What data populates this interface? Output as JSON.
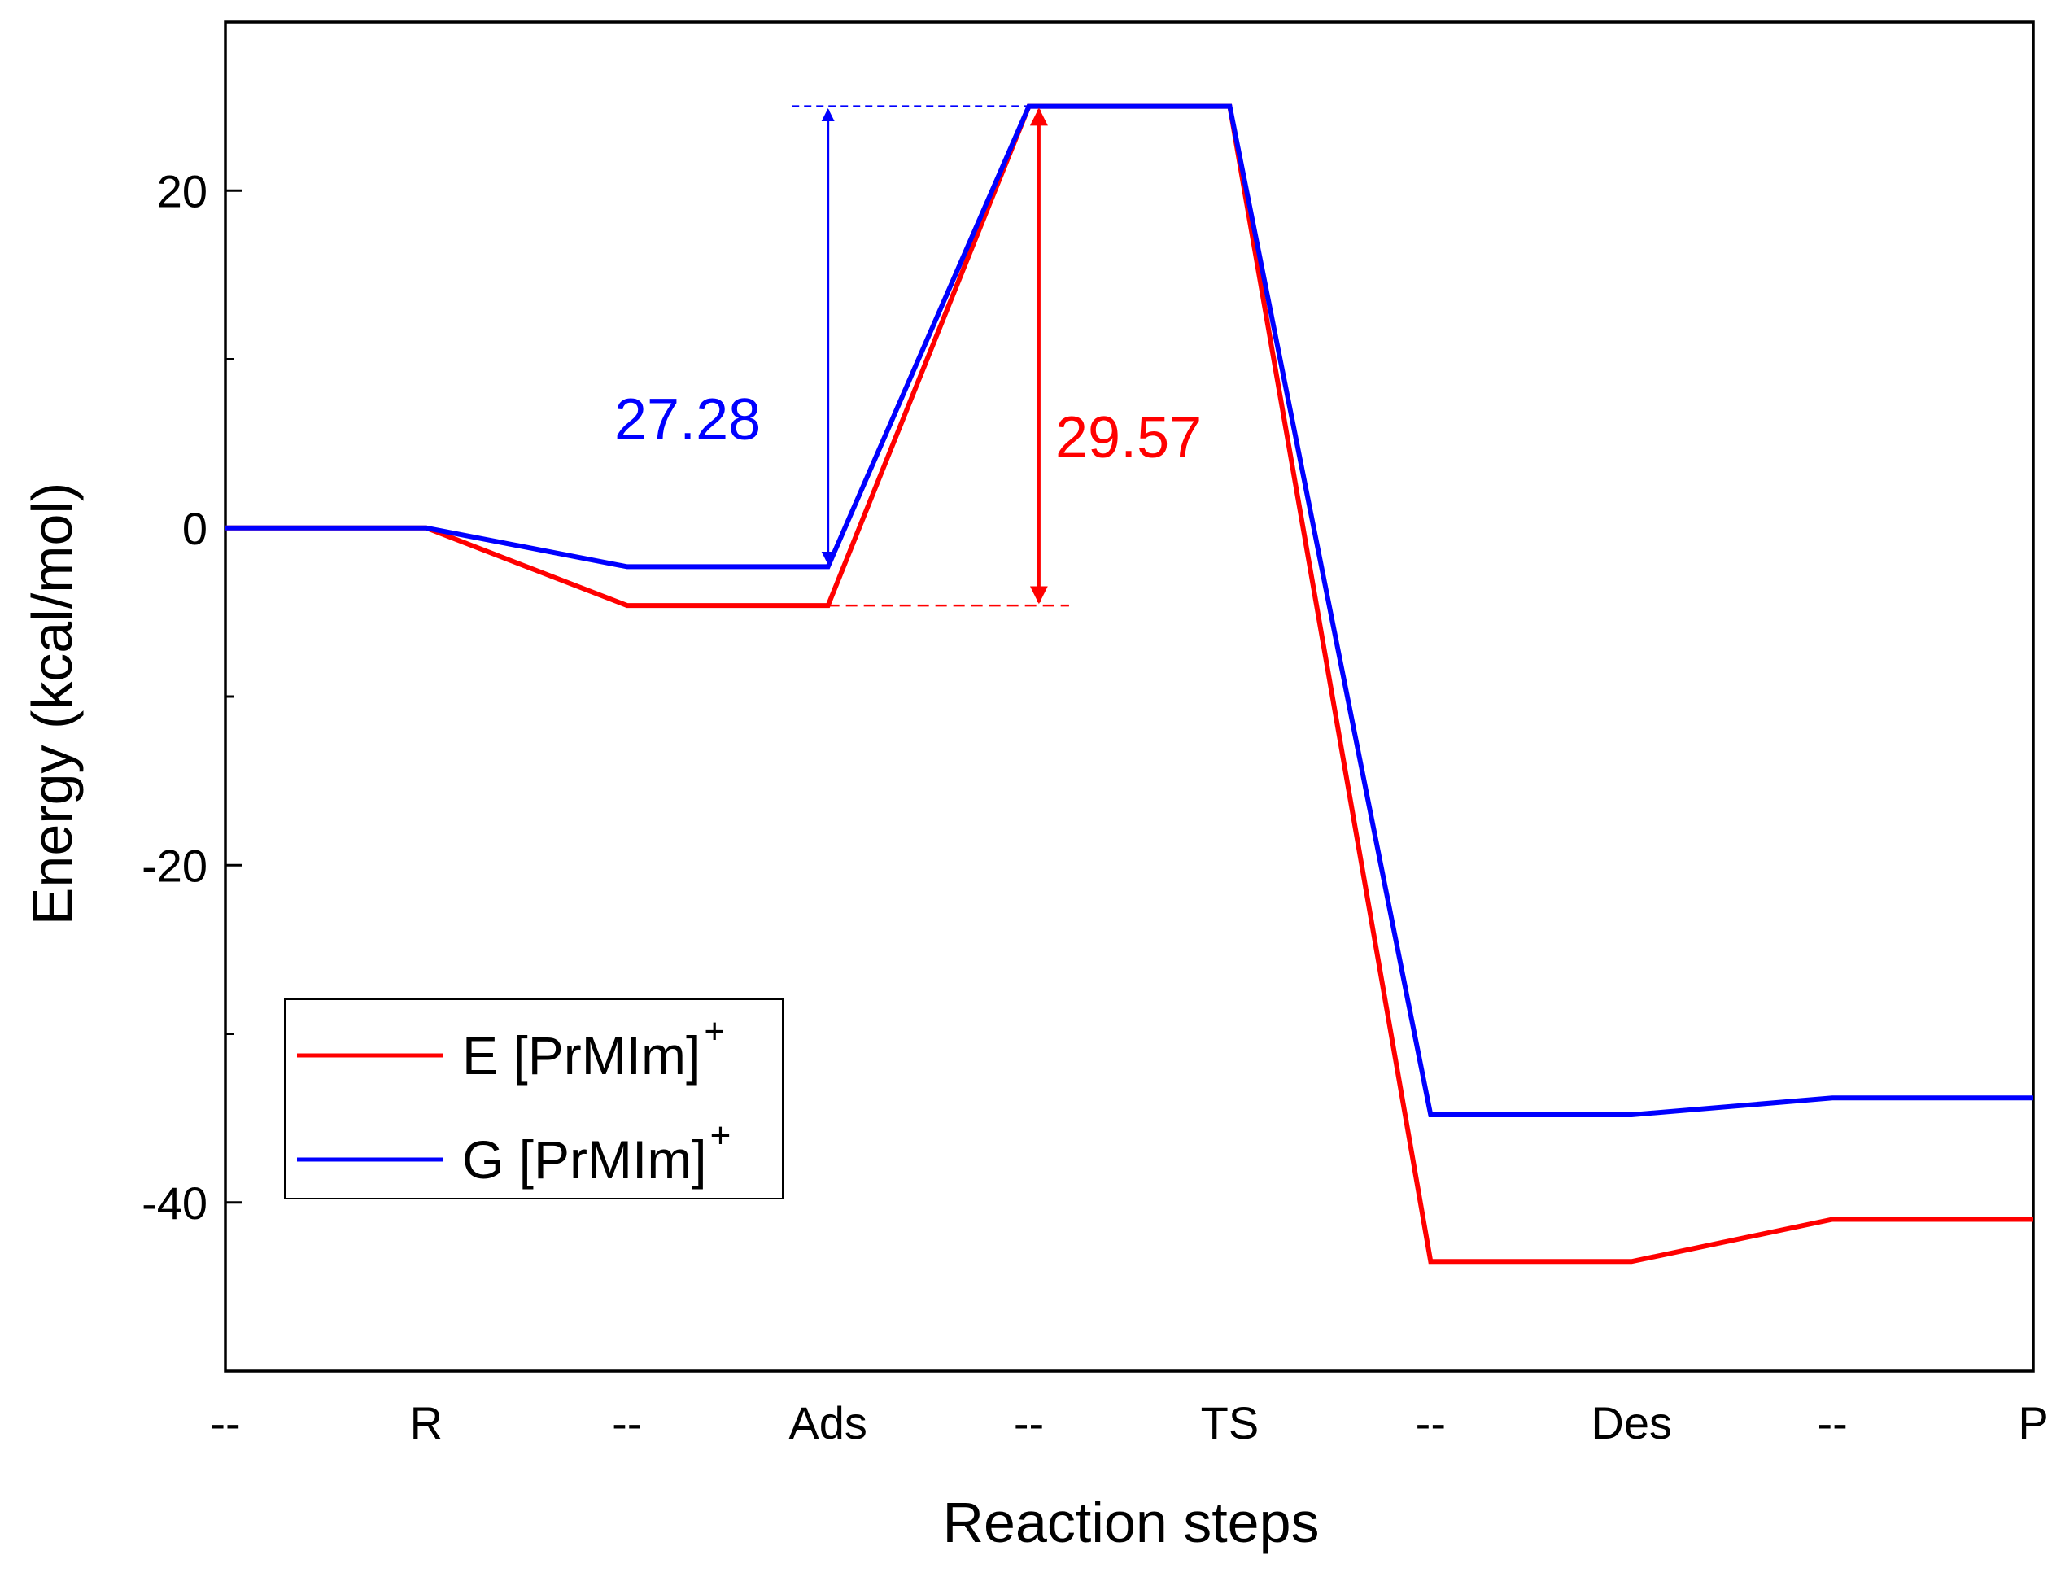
{
  "chart_data": {
    "type": "line",
    "title": "",
    "xlabel": "Reaction steps",
    "ylabel": "Energy (kcal/mol)",
    "x_tick_labels": [
      "--",
      "R",
      "--",
      "Ads",
      "--",
      "TS",
      "--",
      "Des",
      "--",
      "P"
    ],
    "x": [
      0,
      1,
      2,
      3,
      4,
      5,
      6,
      7,
      8,
      9
    ],
    "ylim": [
      -50,
      30
    ],
    "xlim": [
      0,
      9
    ],
    "y_tick_labels": [
      {
        "value": 20,
        "label": "20"
      },
      {
        "value": 0,
        "label": "0"
      },
      {
        "value": -20,
        "label": "-20"
      },
      {
        "value": -40,
        "label": "-40"
      }
    ],
    "y_minor_ticks": [
      10,
      -10,
      -30
    ],
    "grid": false,
    "legend_position": "lower-left",
    "series": [
      {
        "name": "E [PrMIm]",
        "name_sup": "+",
        "color": "#ff0000",
        "values": [
          0,
          0,
          -4.6,
          -4.6,
          25.0,
          25.0,
          -43.5,
          -43.5,
          -41.0,
          -41.0
        ]
      },
      {
        "name": "G [PrMIm]",
        "name_sup": "+",
        "color": "#0000ff",
        "values": [
          0,
          0,
          -2.3,
          -2.3,
          25.0,
          25.0,
          -34.8,
          -34.8,
          -33.8,
          -33.8
        ]
      }
    ],
    "annotations": [
      {
        "text": "27.28",
        "color": "#0000ff",
        "x": 3.0,
        "from": -2.3,
        "to": 25.0
      },
      {
        "text": "29.57",
        "color": "#ff0000",
        "x": 4.05,
        "from": -4.6,
        "to": 25.0
      }
    ]
  }
}
